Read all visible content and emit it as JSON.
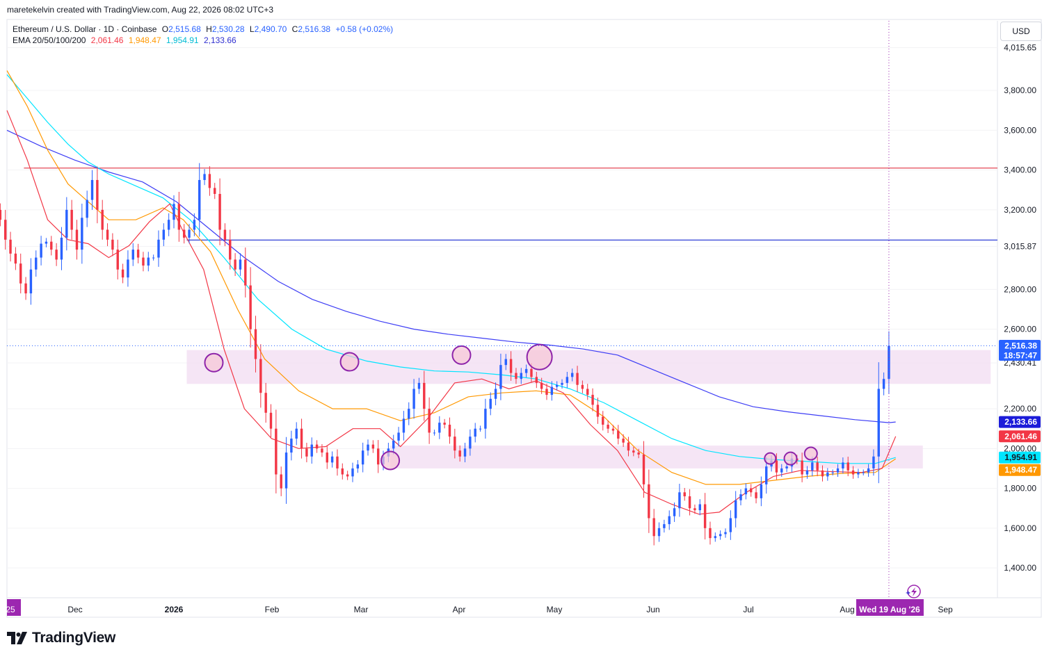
{
  "header": {
    "attribution": "maretekelvin created with TradingView.com, Aug 22, 2026 08:02 UTC+3"
  },
  "legend": {
    "symbol": "Ethereum / U.S. Dollar · 1D · Coinbase",
    "open_label": "O",
    "open": "2,515.68",
    "high_label": "H",
    "high": "2,530.28",
    "low_label": "L",
    "low": "2,490.70",
    "close_label": "C",
    "close": "2,516.38",
    "change": "+0.58 (+0.02%)",
    "ema_label": "EMA 20/50/100/200",
    "ema20": "2,061.46",
    "ema50": "1,948.47",
    "ema100": "1,954.91",
    "ema200": "2,133.66"
  },
  "currency_button": "USD",
  "footer": {
    "brand": "TradingView"
  },
  "colors": {
    "up": "#2962ff",
    "down": "#f23645",
    "ema20": "#f23645",
    "ema50": "#ff9800",
    "ema100": "#00e5ff",
    "ema200": "#3d3df5",
    "zone": "#f3e1f3",
    "circle_stroke": "#8e24aa",
    "circle_fill": "#f7c6d6"
  },
  "chart_data": {
    "type": "candlestick",
    "y_range": [
      1250,
      4150
    ],
    "x_domain_days": [
      -30,
      262
    ],
    "y_ticks": [
      "4,015.65",
      "3,800.00",
      "3,600.00",
      "3,400.00",
      "3,200.00",
      "3,015.87",
      "2,800.00",
      "2,600.00",
      "2,430.41",
      "2,200.00",
      "2,000.00",
      "1,800.00",
      "1,600.00",
      "1,400.00"
    ],
    "y_tick_values": [
      4015.65,
      3800,
      3600,
      3400,
      3200,
      3015.87,
      2800,
      2600,
      2430.41,
      2200,
      2000,
      1800,
      1600,
      1400
    ],
    "x_ticks": [
      {
        "label": "25",
        "day": -30
      },
      {
        "label": "Dec",
        "day": -31
      },
      {
        "label": "2026",
        "day": 0
      },
      {
        "label": "Feb",
        "day": 31
      },
      {
        "label": "Mar",
        "day": 59
      },
      {
        "label": "Apr",
        "day": 90
      },
      {
        "label": "May",
        "day": 120
      },
      {
        "label": "Jun",
        "day": 151
      },
      {
        "label": "Jul",
        "day": 181
      },
      {
        "label": "Aug",
        "day": 212
      },
      {
        "label": "Sep",
        "day": 243
      }
    ],
    "crosshair_label": "Wed 19 Aug '26",
    "crosshair_day": 230,
    "horizontal_lines": [
      {
        "value": 3410,
        "color": "#e03040",
        "from_day": -25
      },
      {
        "value": 3048,
        "color": "#2f3fd6",
        "from_day": 23
      }
    ],
    "zones": [
      {
        "from_day": 23,
        "to_day": 260,
        "low": 2325,
        "high": 2495
      },
      {
        "from_day": 83,
        "to_day": 240,
        "low": 1900,
        "high": 2015
      }
    ],
    "circles": [
      {
        "day": 31,
        "value": 2432,
        "r": 13
      },
      {
        "day": 71,
        "value": 2436,
        "r": 13
      },
      {
        "day": 83,
        "value": 1940,
        "r": 13
      },
      {
        "day": 104,
        "value": 2470,
        "r": 13
      },
      {
        "day": 127,
        "value": 2460,
        "r": 18
      },
      {
        "day": 195,
        "value": 1950,
        "r": 8
      },
      {
        "day": 201,
        "value": 1950,
        "r": 9
      },
      {
        "day": 207,
        "value": 1975,
        "r": 9
      }
    ],
    "price_labels": [
      {
        "value": 2516.38,
        "text": "2,516.38",
        "sub": "18:57:47",
        "bg": "#2962ff"
      },
      {
        "value": 2133.66,
        "text": "2,133.66",
        "bg": "#1c1cd9"
      },
      {
        "value": 2061.46,
        "text": "2,061.46",
        "bg": "#f23645"
      },
      {
        "value": 1954.91,
        "text": "1,954.91",
        "bg": "#00e5ff",
        "fg": "#131722"
      },
      {
        "value": 1948.47,
        "text": "1,948.47",
        "bg": "#ff9800"
      }
    ],
    "closes": [
      3620,
      3480,
      3300,
      3200,
      3150,
      3050,
      2980,
      2930,
      2830,
      2780,
      2900,
      2960,
      3030,
      3040,
      3000,
      2950,
      3060,
      3200,
      3100,
      3000,
      3160,
      3250,
      3350,
      3200,
      3100,
      3050,
      3000,
      2900,
      2860,
      2950,
      3000,
      2960,
      2920,
      2960,
      2960,
      3050,
      3100,
      3150,
      3230,
      3100,
      3060,
      3100,
      3150,
      3350,
      3380,
      3310,
      3280,
      3100,
      3050,
      2950,
      2900,
      2950,
      2820,
      2600,
      2450,
      2280,
      2180,
      2100,
      1870,
      1800,
      1980,
      2050,
      2100,
      2000,
      1960,
      2020,
      2000,
      1980,
      1930,
      1960,
      1900,
      1870,
      1860,
      1900,
      1920,
      1990,
      2020,
      2000,
      1920,
      1960,
      2000,
      2040,
      2080,
      2150,
      2200,
      2300,
      2330,
      2200,
      2080,
      2080,
      2130,
      2120,
      2060,
      1990,
      1960,
      2000,
      2060,
      2100,
      2100,
      2200,
      2250,
      2300,
      2420,
      2450,
      2380,
      2350,
      2380,
      2400,
      2360,
      2330,
      2300,
      2270,
      2310,
      2320,
      2330,
      2360,
      2380,
      2320,
      2300,
      2270,
      2220,
      2160,
      2120,
      2100,
      2090,
      2050,
      2030,
      1990,
      1980,
      1970,
      1820,
      1650,
      1560,
      1600,
      1620,
      1660,
      1700,
      1780,
      1760,
      1700,
      1690,
      1720,
      1600,
      1550,
      1560,
      1570,
      1580,
      1650,
      1740,
      1770,
      1800,
      1780,
      1750,
      1820,
      1910,
      1940,
      1880,
      1900,
      1910,
      1950,
      1940,
      1870,
      1890,
      1930,
      1890,
      1860,
      1880,
      1880,
      1900,
      1930,
      1890,
      1870,
      1880,
      1880,
      1900,
      1960,
      2300,
      2350,
      2516.38
    ],
    "ema20": [
      {
        "day": -30,
        "value": 3700
      },
      {
        "day": -24,
        "value": 3450
      },
      {
        "day": -18,
        "value": 3150
      },
      {
        "day": -12,
        "value": 3050
      },
      {
        "day": -6,
        "value": 3030
      },
      {
        "day": 0,
        "value": 2960
      },
      {
        "day": 6,
        "value": 3020
      },
      {
        "day": 12,
        "value": 3140
      },
      {
        "day": 18,
        "value": 3230
      },
      {
        "day": 22,
        "value": 3090
      },
      {
        "day": 28,
        "value": 2900
      },
      {
        "day": 34,
        "value": 2500
      },
      {
        "day": 40,
        "value": 2200
      },
      {
        "day": 48,
        "value": 2050
      },
      {
        "day": 56,
        "value": 2000
      },
      {
        "day": 64,
        "value": 2010
      },
      {
        "day": 72,
        "value": 2100
      },
      {
        "day": 80,
        "value": 2100
      },
      {
        "day": 86,
        "value": 2010
      },
      {
        "day": 94,
        "value": 2150
      },
      {
        "day": 102,
        "value": 2330
      },
      {
        "day": 110,
        "value": 2350
      },
      {
        "day": 118,
        "value": 2300
      },
      {
        "day": 126,
        "value": 2340
      },
      {
        "day": 134,
        "value": 2280
      },
      {
        "day": 142,
        "value": 2120
      },
      {
        "day": 150,
        "value": 1990
      },
      {
        "day": 158,
        "value": 1780
      },
      {
        "day": 166,
        "value": 1720
      },
      {
        "day": 174,
        "value": 1670
      },
      {
        "day": 180,
        "value": 1680
      },
      {
        "day": 188,
        "value": 1780
      },
      {
        "day": 196,
        "value": 1860
      },
      {
        "day": 204,
        "value": 1890
      },
      {
        "day": 212,
        "value": 1885
      },
      {
        "day": 222,
        "value": 1880
      },
      {
        "day": 228,
        "value": 1900
      },
      {
        "day": 232,
        "value": 2061.46
      }
    ],
    "ema50": [
      {
        "day": -30,
        "value": 3900
      },
      {
        "day": -24,
        "value": 3720
      },
      {
        "day": -18,
        "value": 3500
      },
      {
        "day": -12,
        "value": 3330
      },
      {
        "day": -6,
        "value": 3240
      },
      {
        "day": 0,
        "value": 3150
      },
      {
        "day": 8,
        "value": 3150
      },
      {
        "day": 16,
        "value": 3210
      },
      {
        "day": 22,
        "value": 3150
      },
      {
        "day": 30,
        "value": 2990
      },
      {
        "day": 38,
        "value": 2700
      },
      {
        "day": 46,
        "value": 2450
      },
      {
        "day": 56,
        "value": 2290
      },
      {
        "day": 66,
        "value": 2200
      },
      {
        "day": 76,
        "value": 2200
      },
      {
        "day": 86,
        "value": 2140
      },
      {
        "day": 96,
        "value": 2180
      },
      {
        "day": 106,
        "value": 2260
      },
      {
        "day": 116,
        "value": 2280
      },
      {
        "day": 126,
        "value": 2290
      },
      {
        "day": 136,
        "value": 2270
      },
      {
        "day": 146,
        "value": 2160
      },
      {
        "day": 156,
        "value": 1990
      },
      {
        "day": 166,
        "value": 1880
      },
      {
        "day": 176,
        "value": 1820
      },
      {
        "day": 186,
        "value": 1820
      },
      {
        "day": 196,
        "value": 1840
      },
      {
        "day": 206,
        "value": 1860
      },
      {
        "day": 216,
        "value": 1875
      },
      {
        "day": 226,
        "value": 1880
      },
      {
        "day": 232,
        "value": 1948.47
      }
    ],
    "ema100": [
      {
        "day": -30,
        "value": 3880
      },
      {
        "day": -24,
        "value": 3760
      },
      {
        "day": -18,
        "value": 3640
      },
      {
        "day": -12,
        "value": 3530
      },
      {
        "day": -6,
        "value": 3440
      },
      {
        "day": 0,
        "value": 3380
      },
      {
        "day": 8,
        "value": 3320
      },
      {
        "day": 16,
        "value": 3260
      },
      {
        "day": 24,
        "value": 3150
      },
      {
        "day": 34,
        "value": 2960
      },
      {
        "day": 44,
        "value": 2750
      },
      {
        "day": 54,
        "value": 2600
      },
      {
        "day": 64,
        "value": 2500
      },
      {
        "day": 76,
        "value": 2440
      },
      {
        "day": 86,
        "value": 2410
      },
      {
        "day": 96,
        "value": 2390
      },
      {
        "day": 106,
        "value": 2385
      },
      {
        "day": 116,
        "value": 2370
      },
      {
        "day": 126,
        "value": 2350
      },
      {
        "day": 136,
        "value": 2300
      },
      {
        "day": 146,
        "value": 2230
      },
      {
        "day": 156,
        "value": 2140
      },
      {
        "day": 166,
        "value": 2050
      },
      {
        "day": 176,
        "value": 1990
      },
      {
        "day": 186,
        "value": 1960
      },
      {
        "day": 196,
        "value": 1945
      },
      {
        "day": 206,
        "value": 1935
      },
      {
        "day": 216,
        "value": 1925
      },
      {
        "day": 226,
        "value": 1925
      },
      {
        "day": 232,
        "value": 1954.91
      }
    ],
    "ema200": [
      {
        "day": -30,
        "value": 3600
      },
      {
        "day": -20,
        "value": 3520
      },
      {
        "day": -10,
        "value": 3450
      },
      {
        "day": 0,
        "value": 3390
      },
      {
        "day": 10,
        "value": 3340
      },
      {
        "day": 20,
        "value": 3240
      },
      {
        "day": 30,
        "value": 3100
      },
      {
        "day": 40,
        "value": 2960
      },
      {
        "day": 50,
        "value": 2840
      },
      {
        "day": 60,
        "value": 2750
      },
      {
        "day": 70,
        "value": 2690
      },
      {
        "day": 80,
        "value": 2640
      },
      {
        "day": 90,
        "value": 2600
      },
      {
        "day": 100,
        "value": 2575
      },
      {
        "day": 110,
        "value": 2555
      },
      {
        "day": 120,
        "value": 2535
      },
      {
        "day": 130,
        "value": 2520
      },
      {
        "day": 140,
        "value": 2500
      },
      {
        "day": 150,
        "value": 2470
      },
      {
        "day": 160,
        "value": 2400
      },
      {
        "day": 170,
        "value": 2330
      },
      {
        "day": 180,
        "value": 2260
      },
      {
        "day": 190,
        "value": 2210
      },
      {
        "day": 200,
        "value": 2185
      },
      {
        "day": 210,
        "value": 2165
      },
      {
        "day": 220,
        "value": 2145
      },
      {
        "day": 230,
        "value": 2130
      },
      {
        "day": 232,
        "value": 2133.66
      }
    ]
  }
}
